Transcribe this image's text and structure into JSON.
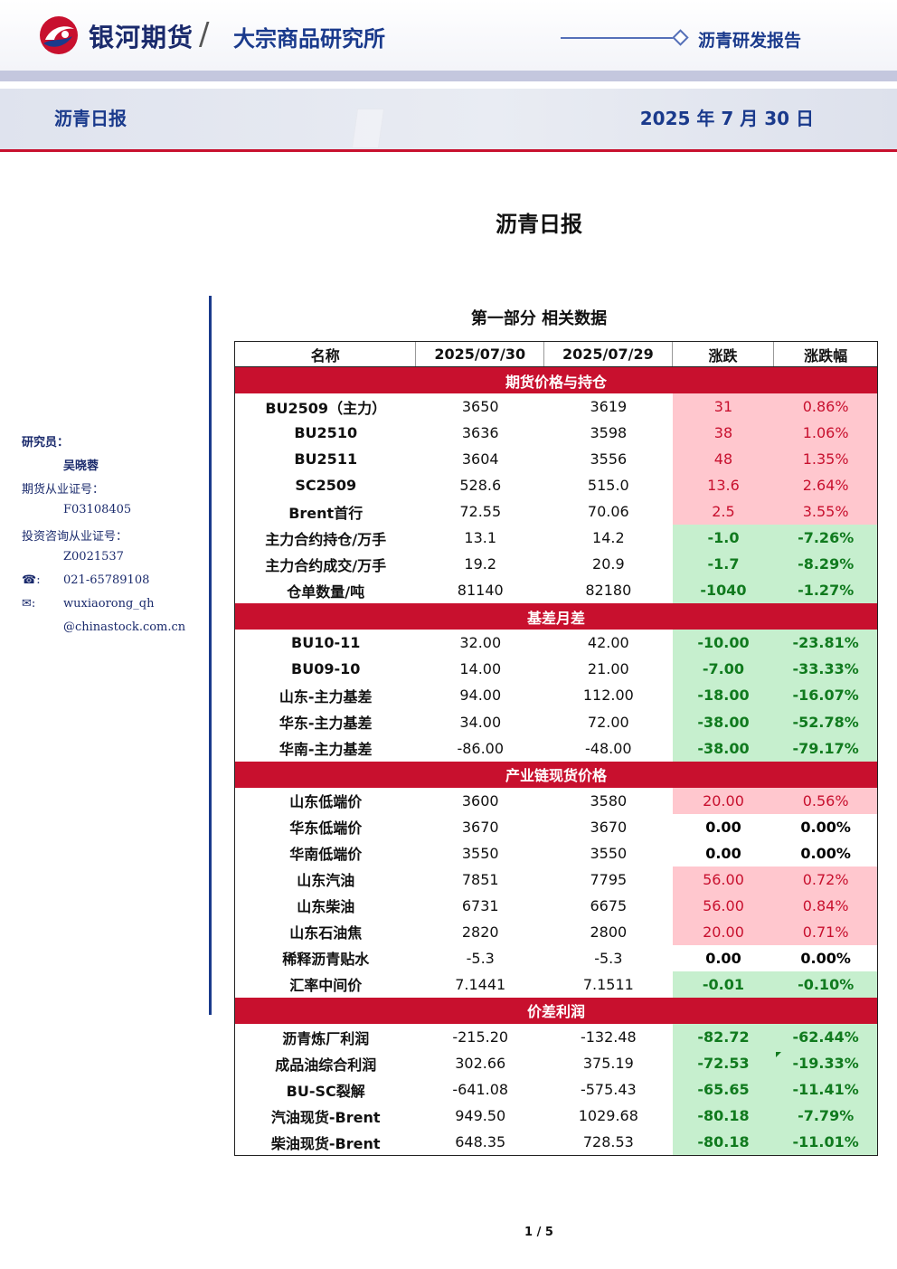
{
  "header": {
    "brand": "银河期货",
    "slash": "/",
    "institute": "大宗商品研究所",
    "report_type": "沥青研发报告",
    "sub_title": "沥青日报",
    "date": "2025 年 7 月 30 日"
  },
  "title": "沥青日报",
  "section_title": "第一部分 相关数据",
  "sidebar": {
    "researcher_label": "研究员：",
    "researcher_name": "吴晓蓉",
    "futures_cert_label": "期货从业证号：",
    "futures_cert": "F03108405",
    "consult_cert_label": "投资咨询从业证号：",
    "consult_cert": "Z0021537",
    "phone_icon": "☎:",
    "phone": "021-65789108",
    "email_icon": "✉:",
    "email_line1": "wuxiaorong_qh",
    "email_line2": "@chinastock.com.cn"
  },
  "table": {
    "headers": [
      "名称",
      "2025/07/30",
      "2025/07/29",
      "涨跌",
      "涨跌幅"
    ],
    "sections": [
      {
        "title": "期货价格与持仓",
        "rows": [
          {
            "name": "BU2509（主力）",
            "v1": "3650",
            "v2": "3619",
            "chg": "31",
            "pct": "0.86%",
            "dir": "up"
          },
          {
            "name": "BU2510",
            "v1": "3636",
            "v2": "3598",
            "chg": "38",
            "pct": "1.06%",
            "dir": "up"
          },
          {
            "name": "BU2511",
            "v1": "3604",
            "v2": "3556",
            "chg": "48",
            "pct": "1.35%",
            "dir": "up"
          },
          {
            "name": "SC2509",
            "v1": "528.6",
            "v2": "515.0",
            "chg": "13.6",
            "pct": "2.64%",
            "dir": "up"
          },
          {
            "name": "Brent首行",
            "v1": "72.55",
            "v2": "70.06",
            "chg": "2.5",
            "pct": "3.55%",
            "dir": "up"
          },
          {
            "name": "主力合约持仓/万手",
            "v1": "13.1",
            "v2": "14.2",
            "chg": "-1.0",
            "pct": "-7.26%",
            "dir": "down"
          },
          {
            "name": "主力合约成交/万手",
            "v1": "19.2",
            "v2": "20.9",
            "chg": "-1.7",
            "pct": "-8.29%",
            "dir": "down"
          },
          {
            "name": "仓单数量/吨",
            "v1": "81140",
            "v2": "82180",
            "chg": "-1040",
            "pct": "-1.27%",
            "dir": "down"
          }
        ]
      },
      {
        "title": "基差月差",
        "rows": [
          {
            "name": "BU10-11",
            "v1": "32.00",
            "v2": "42.00",
            "chg": "-10.00",
            "pct": "-23.81%",
            "dir": "down"
          },
          {
            "name": "BU09-10",
            "v1": "14.00",
            "v2": "21.00",
            "chg": "-7.00",
            "pct": "-33.33%",
            "dir": "down"
          },
          {
            "name": "山东-主力基差",
            "v1": "94.00",
            "v2": "112.00",
            "chg": "-18.00",
            "pct": "-16.07%",
            "dir": "down"
          },
          {
            "name": "华东-主力基差",
            "v1": "34.00",
            "v2": "72.00",
            "chg": "-38.00",
            "pct": "-52.78%",
            "dir": "down"
          },
          {
            "name": "华南-主力基差",
            "v1": "-86.00",
            "v2": "-48.00",
            "chg": "-38.00",
            "pct": "-79.17%",
            "dir": "down"
          }
        ]
      },
      {
        "title": "产业链现货价格",
        "rows": [
          {
            "name": "山东低端价",
            "v1": "3600",
            "v2": "3580",
            "chg": "20.00",
            "pct": "0.56%",
            "dir": "up"
          },
          {
            "name": "华东低端价",
            "v1": "3670",
            "v2": "3670",
            "chg": "0.00",
            "pct": "0.00%",
            "dir": "flat"
          },
          {
            "name": "华南低端价",
            "v1": "3550",
            "v2": "3550",
            "chg": "0.00",
            "pct": "0.00%",
            "dir": "flat"
          },
          {
            "name": "山东汽油",
            "v1": "7851",
            "v2": "7795",
            "chg": "56.00",
            "pct": "0.72%",
            "dir": "up"
          },
          {
            "name": "山东柴油",
            "v1": "6731",
            "v2": "6675",
            "chg": "56.00",
            "pct": "0.84%",
            "dir": "up"
          },
          {
            "name": "山东石油焦",
            "v1": "2820",
            "v2": "2800",
            "chg": "20.00",
            "pct": "0.71%",
            "dir": "up"
          },
          {
            "name": "稀释沥青贴水",
            "v1": "-5.3",
            "v2": "-5.3",
            "chg": "0.00",
            "pct": "0.00%",
            "dir": "flat"
          },
          {
            "name": "汇率中间价",
            "v1": "7.1441",
            "v2": "7.1511",
            "chg": "-0.01",
            "pct": "-0.10%",
            "dir": "down"
          }
        ]
      },
      {
        "title": "价差利润",
        "rows": [
          {
            "name": "沥青炼厂利润",
            "v1": "-215.20",
            "v2": "-132.48",
            "chg": "-82.72",
            "pct": "-62.44%",
            "dir": "down"
          },
          {
            "name": "成品油综合利润",
            "v1": "302.66",
            "v2": "375.19",
            "chg": "-72.53",
            "pct": "-19.33%",
            "dir": "down"
          },
          {
            "name": "BU-SC裂解",
            "v1": "-641.08",
            "v2": "-575.43",
            "chg": "-65.65",
            "pct": "-11.41%",
            "dir": "down"
          },
          {
            "name": "汽油现货-Brent",
            "v1": "949.50",
            "v2": "1029.68",
            "chg": "-80.18",
            "pct": "-7.79%",
            "dir": "down"
          },
          {
            "name": "柴油现货-Brent",
            "v1": "648.35",
            "v2": "728.53",
            "chg": "-80.18",
            "pct": "-11.01%",
            "dir": "down"
          }
        ]
      }
    ]
  },
  "page": "1 / 5",
  "colors": {
    "brand_blue": "#1a3a8c",
    "band_red": "#c8102e",
    "up_bg": "#ffc7ce",
    "down_bg": "#c6efce"
  },
  "icons": {
    "logo": "galaxy-logo-icon",
    "phone": "phone-icon",
    "email": "envelope-icon"
  }
}
